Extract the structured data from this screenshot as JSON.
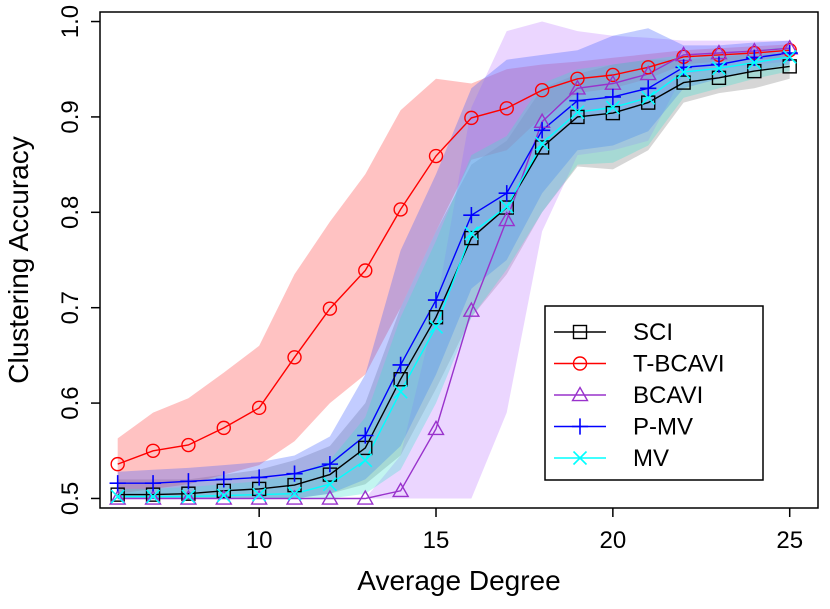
{
  "chart_data": {
    "type": "line",
    "title": "",
    "xlabel": "Average Degree",
    "ylabel": "Clustering Accuracy",
    "xlim": [
      5.5,
      25.8
    ],
    "ylim": [
      0.49,
      1.01
    ],
    "x_ticks": [
      10,
      15,
      20,
      25
    ],
    "x_tick_labels": [
      "10",
      "15",
      "20",
      "25"
    ],
    "y_ticks": [
      0.5,
      0.6,
      0.7,
      0.8,
      0.9,
      1.0
    ],
    "y_tick_labels": [
      "0.5",
      "0.6",
      "0.7",
      "0.8",
      "0.9",
      "1.0"
    ],
    "grid": false,
    "legend_position": "bottom-right",
    "x": [
      6,
      7,
      8,
      9,
      10,
      11,
      12,
      13,
      14,
      15,
      16,
      17,
      18,
      19,
      20,
      21,
      22,
      23,
      24,
      25
    ],
    "series": [
      {
        "name": "SCI",
        "color": "#000000",
        "band_color": "#808080",
        "marker": "square",
        "values": [
          0.504,
          0.504,
          0.505,
          0.508,
          0.51,
          0.514,
          0.525,
          0.553,
          0.625,
          0.69,
          0.773,
          0.805,
          0.868,
          0.9,
          0.904,
          0.915,
          0.936,
          0.941,
          0.948,
          0.953
        ],
        "lower": [
          0.5,
          0.5,
          0.5,
          0.5,
          0.5,
          0.5,
          0.505,
          0.515,
          0.545,
          0.615,
          0.69,
          0.735,
          0.8,
          0.848,
          0.845,
          0.865,
          0.915,
          0.925,
          0.93,
          0.94
        ],
        "upper": [
          0.52,
          0.52,
          0.52,
          0.525,
          0.53,
          0.54,
          0.555,
          0.6,
          0.7,
          0.78,
          0.85,
          0.875,
          0.93,
          0.945,
          0.955,
          0.96,
          0.96,
          0.963,
          0.966,
          0.968
        ]
      },
      {
        "name": "T-BCAVI",
        "color": "#ff0000",
        "band_color": "#ff4040",
        "marker": "circle",
        "values": [
          0.536,
          0.55,
          0.556,
          0.574,
          0.595,
          0.648,
          0.699,
          0.739,
          0.803,
          0.859,
          0.899,
          0.909,
          0.928,
          0.94,
          0.944,
          0.952,
          0.963,
          0.965,
          0.967,
          0.97
        ],
        "lower": [
          0.505,
          0.51,
          0.515,
          0.525,
          0.535,
          0.56,
          0.6,
          0.63,
          0.7,
          0.78,
          0.855,
          0.865,
          0.9,
          0.925,
          0.93,
          0.94,
          0.955,
          0.958,
          0.96,
          0.962
        ],
        "upper": [
          0.563,
          0.59,
          0.605,
          0.632,
          0.66,
          0.735,
          0.79,
          0.84,
          0.907,
          0.94,
          0.935,
          0.95,
          0.955,
          0.958,
          0.962,
          0.966,
          0.97,
          0.972,
          0.974,
          0.976
        ]
      },
      {
        "name": "BCAVI",
        "color": "#9932cc",
        "band_color": "#c080ff",
        "marker": "triangle",
        "values": [
          0.5,
          0.5,
          0.5,
          0.5,
          0.5,
          0.5,
          0.5,
          0.5,
          0.508,
          0.573,
          0.697,
          0.792,
          0.895,
          0.93,
          0.935,
          0.945,
          0.965,
          0.967,
          0.969,
          0.972
        ],
        "lower": [
          0.5,
          0.5,
          0.5,
          0.5,
          0.5,
          0.5,
          0.5,
          0.5,
          0.5,
          0.5,
          0.5,
          0.59,
          0.78,
          0.86,
          0.865,
          0.875,
          0.945,
          0.95,
          0.955,
          0.958
        ],
        "upper": [
          0.5,
          0.5,
          0.5,
          0.5,
          0.5,
          0.5,
          0.5,
          0.5,
          0.545,
          0.7,
          0.91,
          0.99,
          1.0,
          0.99,
          0.985,
          0.983,
          0.98,
          0.98,
          0.98,
          0.98
        ]
      },
      {
        "name": "P-MV",
        "color": "#0000ff",
        "band_color": "#4060ff",
        "marker": "plus",
        "values": [
          0.516,
          0.516,
          0.518,
          0.52,
          0.522,
          0.526,
          0.536,
          0.566,
          0.64,
          0.708,
          0.797,
          0.82,
          0.886,
          0.917,
          0.921,
          0.93,
          0.952,
          0.955,
          0.962,
          0.967
        ],
        "lower": [
          0.5,
          0.5,
          0.5,
          0.5,
          0.5,
          0.5,
          0.505,
          0.52,
          0.555,
          0.63,
          0.72,
          0.75,
          0.82,
          0.865,
          0.87,
          0.885,
          0.93,
          0.94,
          0.948,
          0.955
        ],
        "upper": [
          0.528,
          0.53,
          0.532,
          0.535,
          0.538,
          0.545,
          0.565,
          0.63,
          0.76,
          0.84,
          0.93,
          0.96,
          0.965,
          0.97,
          0.985,
          0.993,
          0.975,
          0.975,
          0.978,
          0.98
        ]
      },
      {
        "name": "MV",
        "color": "#00ffff",
        "band_color": "#40e0d0",
        "marker": "x",
        "values": [
          0.502,
          0.502,
          0.502,
          0.503,
          0.504,
          0.505,
          0.515,
          0.54,
          0.612,
          0.68,
          0.778,
          0.806,
          0.872,
          0.905,
          0.91,
          0.92,
          0.947,
          0.951,
          0.957,
          0.963
        ],
        "lower": [
          0.5,
          0.5,
          0.5,
          0.5,
          0.5,
          0.5,
          0.5,
          0.505,
          0.53,
          0.6,
          0.69,
          0.74,
          0.8,
          0.85,
          0.852,
          0.87,
          0.92,
          0.93,
          0.94,
          0.948
        ],
        "upper": [
          0.51,
          0.51,
          0.512,
          0.515,
          0.518,
          0.525,
          0.54,
          0.585,
          0.69,
          0.77,
          0.86,
          0.88,
          0.935,
          0.95,
          0.955,
          0.96,
          0.965,
          0.968,
          0.97,
          0.974
        ]
      }
    ]
  }
}
